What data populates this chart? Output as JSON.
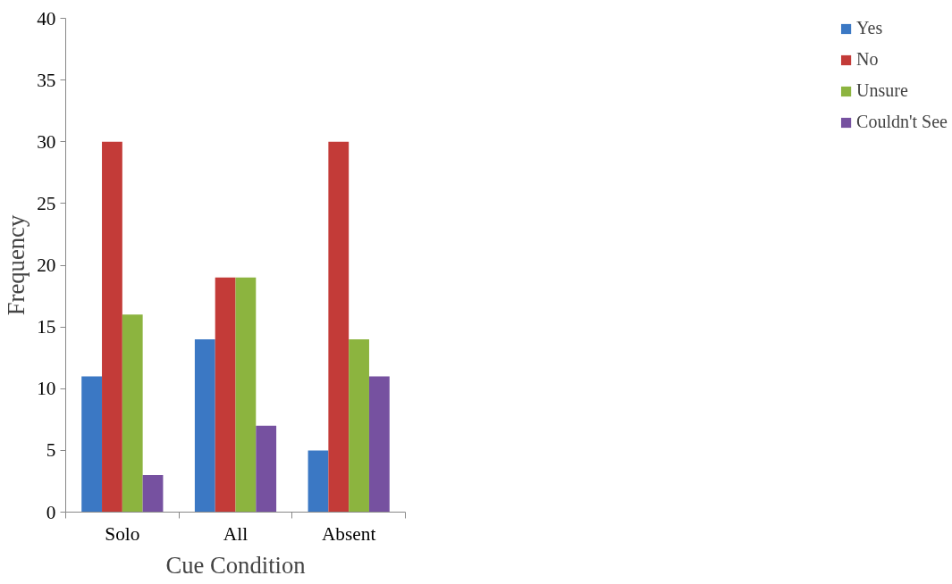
{
  "chart_data": {
    "type": "bar",
    "xlabel": "Cue Condition",
    "ylabel": "Frequency",
    "categories": [
      "Solo",
      "All",
      "Absent"
    ],
    "series": [
      {
        "name": "Yes",
        "color": "#3b78c4",
        "values": [
          11,
          14,
          5
        ]
      },
      {
        "name": "No",
        "color": "#c33b38",
        "values": [
          30,
          19,
          30
        ]
      },
      {
        "name": "Unsure",
        "color": "#8cb43f",
        "values": [
          16,
          19,
          14
        ]
      },
      {
        "name": "Couldn't See",
        "color": "#7651a0",
        "values": [
          3,
          7,
          11
        ]
      }
    ],
    "ylim": [
      0,
      40
    ],
    "yticks": [
      0,
      5,
      10,
      15,
      20,
      25,
      30,
      35,
      40
    ],
    "grid": false,
    "legend": "right"
  }
}
